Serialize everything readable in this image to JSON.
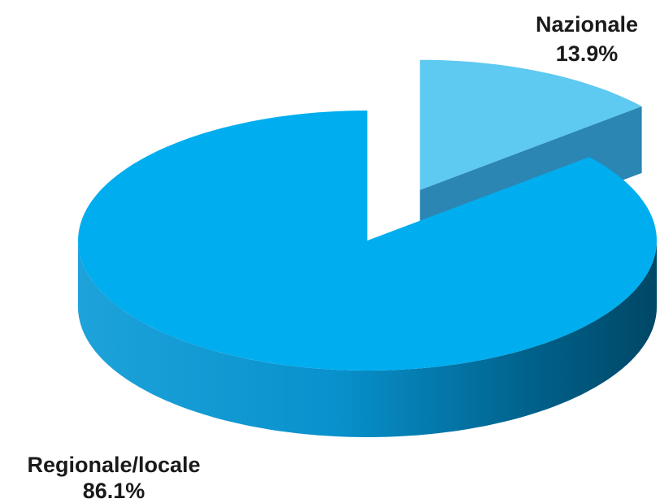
{
  "chart_data": {
    "type": "pie",
    "categories": [
      "Nazionale",
      "Regionale/locale"
    ],
    "values": [
      13.9,
      86.1
    ],
    "value_labels": [
      "13.9%",
      "86.1%"
    ],
    "colors": [
      "#5ec9f1",
      "#00aeef"
    ]
  }
}
